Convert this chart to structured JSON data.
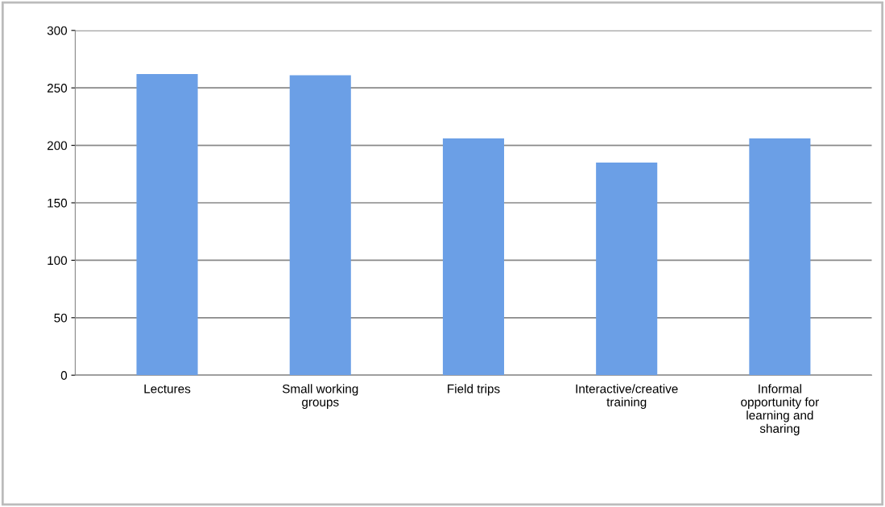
{
  "chart_data": {
    "type": "bar",
    "categories": [
      "Lectures",
      "Small working\ngroups",
      "Field trips",
      "Interactive/creative\ntraining",
      "Informal\nopportunity for\nlearning and\nsharing"
    ],
    "values": [
      262,
      261,
      206,
      185,
      206
    ],
    "color": "#6b9fe6",
    "ylim": [
      0,
      300
    ],
    "yticks": [
      0,
      50,
      100,
      150,
      200,
      250,
      300
    ],
    "grid": "y"
  }
}
